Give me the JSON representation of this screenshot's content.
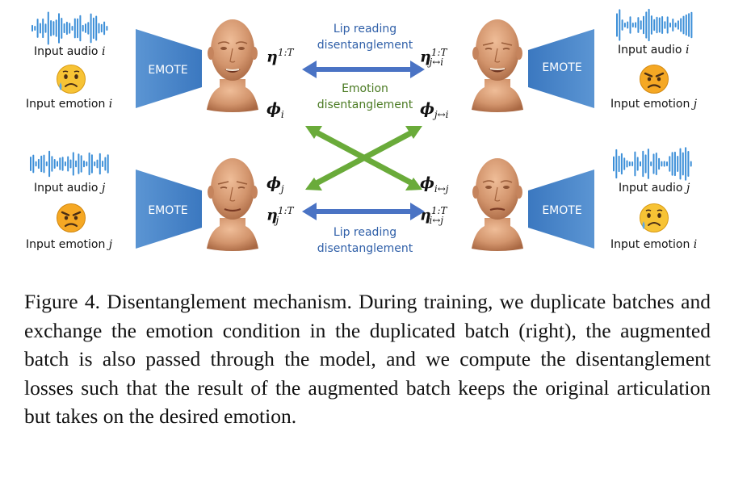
{
  "figure": {
    "top_left": {
      "audio_label": "Input audio",
      "audio_var": "i",
      "emotion_label": "Input emotion",
      "emotion_var": "i",
      "emoji": "sad"
    },
    "bottom_left": {
      "audio_label": "Input audio",
      "audio_var": "j",
      "emotion_label": "Input emotion",
      "emotion_var": "j",
      "emoji": "angry"
    },
    "top_right": {
      "audio_label": "Input audio",
      "audio_var": "i",
      "emotion_label": "Input emotion",
      "emotion_var": "j",
      "emoji": "angry"
    },
    "bottom_right": {
      "audio_label": "Input audio",
      "audio_var": "j",
      "emotion_label": "Input emotion",
      "emotion_var": "i",
      "emoji": "sad"
    },
    "encoder_label": "EMOTE",
    "lip_reading_label_1": "Lip reading",
    "lip_reading_label_2": "disentanglement",
    "emotion_label_1": "Emotion",
    "emotion_label_2": "disentanglement",
    "symbols": {
      "eta": "η",
      "phi": "ϕ",
      "sup_1T": "1:T",
      "sub_i": "i",
      "sub_j": "j",
      "sub_j_i": "j↔i",
      "sub_i_j": "i↔j"
    },
    "colors": {
      "encoder": "#4a86c8",
      "lip_arrow": "#4a73c4",
      "emotion_arrow": "#6aab3a",
      "waveform": "#3c8fd8",
      "skin": "#d59a76"
    }
  },
  "caption": "Figure 4. Disentanglement mechanism. During training, we duplicate batches and exchange the emotion condition in the duplicated batch (right), the augmented batch is also passed through the model, and we compute the disentanglement losses such that the result of the augmented batch keeps the original articulation but takes on the desired emotion."
}
